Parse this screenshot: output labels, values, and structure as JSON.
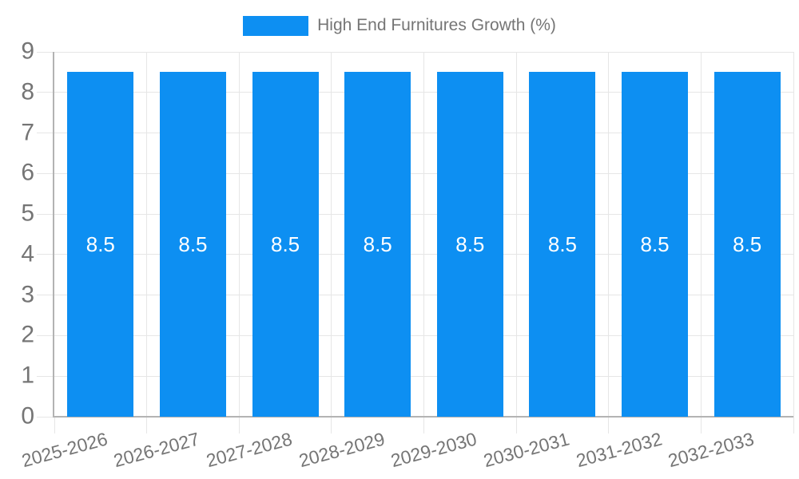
{
  "chart_data": {
    "type": "bar",
    "title": "",
    "categories": [
      "2025-2026",
      "2026-2027",
      "2027-2028",
      "2028-2029",
      "2029-2030",
      "2030-2031",
      "2031-2032",
      "2032-2033"
    ],
    "series": [
      {
        "name": "High End Furnitures Growth (%)",
        "values": [
          8.5,
          8.5,
          8.5,
          8.5,
          8.5,
          8.5,
          8.5,
          8.5
        ]
      }
    ],
    "bar_value_labels": [
      "8.5",
      "8.5",
      "8.5",
      "8.5",
      "8.5",
      "8.5",
      "8.5",
      "8.5"
    ],
    "xlabel": "",
    "ylabel": "",
    "ylim": [
      0,
      9
    ],
    "yticks": [
      0,
      1,
      2,
      3,
      4,
      5,
      6,
      7,
      8,
      9
    ],
    "grid": true,
    "legend_position": "top-center",
    "x_label_rotation_deg": -15,
    "colors": {
      "bar": "#0d8ff2",
      "bar_label": "#ffffff",
      "axis_text": "#757575",
      "grid_line": "#e6e6e6",
      "axis_line": "#b3b3b3",
      "legend_text": "#757575"
    }
  }
}
